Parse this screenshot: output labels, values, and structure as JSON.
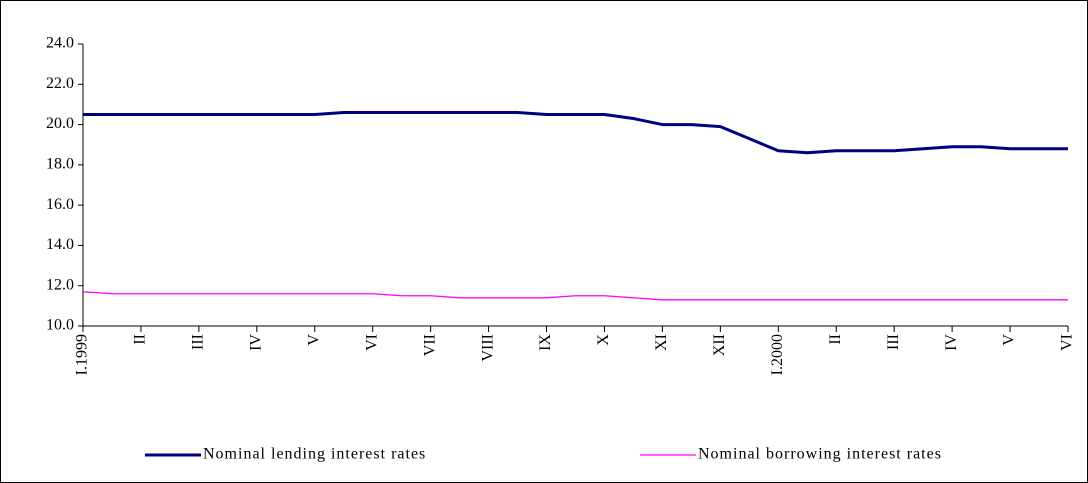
{
  "chart_data": {
    "type": "line",
    "categories": [
      "I.1999",
      null,
      "II",
      null,
      "III",
      null,
      "IV",
      null,
      "V",
      null,
      "VI",
      null,
      "VII",
      null,
      "VIII",
      null,
      "IX",
      null,
      "X",
      null,
      "XI",
      null,
      "XII",
      null,
      "I.2000",
      null,
      "II",
      null,
      "III",
      null,
      "IV",
      null,
      "V",
      null,
      "VI"
    ],
    "series": [
      {
        "name": "Nominal lending interest rates",
        "color": "#000080",
        "values": [
          20.5,
          20.5,
          20.5,
          20.5,
          20.5,
          20.5,
          20.5,
          20.5,
          20.5,
          20.6,
          20.6,
          20.6,
          20.6,
          20.6,
          20.6,
          20.6,
          20.5,
          20.5,
          20.5,
          20.3,
          20.0,
          20.0,
          19.9,
          19.3,
          18.7,
          18.6,
          18.7,
          18.7,
          18.7,
          18.8,
          18.9,
          18.9,
          18.8,
          18.8,
          18.8
        ]
      },
      {
        "name": "Nominal borrowing interest rates",
        "color": "#ff00ff",
        "values": [
          11.7,
          11.6,
          11.6,
          11.6,
          11.6,
          11.6,
          11.6,
          11.6,
          11.6,
          11.6,
          11.6,
          11.5,
          11.5,
          11.4,
          11.4,
          11.4,
          11.4,
          11.5,
          11.5,
          11.4,
          11.3,
          11.3,
          11.3,
          11.3,
          11.3,
          11.3,
          11.3,
          11.3,
          11.3,
          11.3,
          11.3,
          11.3,
          11.3,
          11.3,
          11.3
        ]
      }
    ],
    "ylim": [
      10,
      24
    ],
    "yticks": [
      {
        "value": 10,
        "label": "10.0"
      },
      {
        "value": 12,
        "label": "12.0"
      },
      {
        "value": 14,
        "label": "14.0"
      },
      {
        "value": 16,
        "label": "16.0"
      },
      {
        "value": 18,
        "label": "18.0"
      },
      {
        "value": 20,
        "label": "20.0"
      },
      {
        "value": 22,
        "label": "22.0"
      },
      {
        "value": 24,
        "label": "24.0"
      }
    ],
    "legend": "bottom"
  }
}
